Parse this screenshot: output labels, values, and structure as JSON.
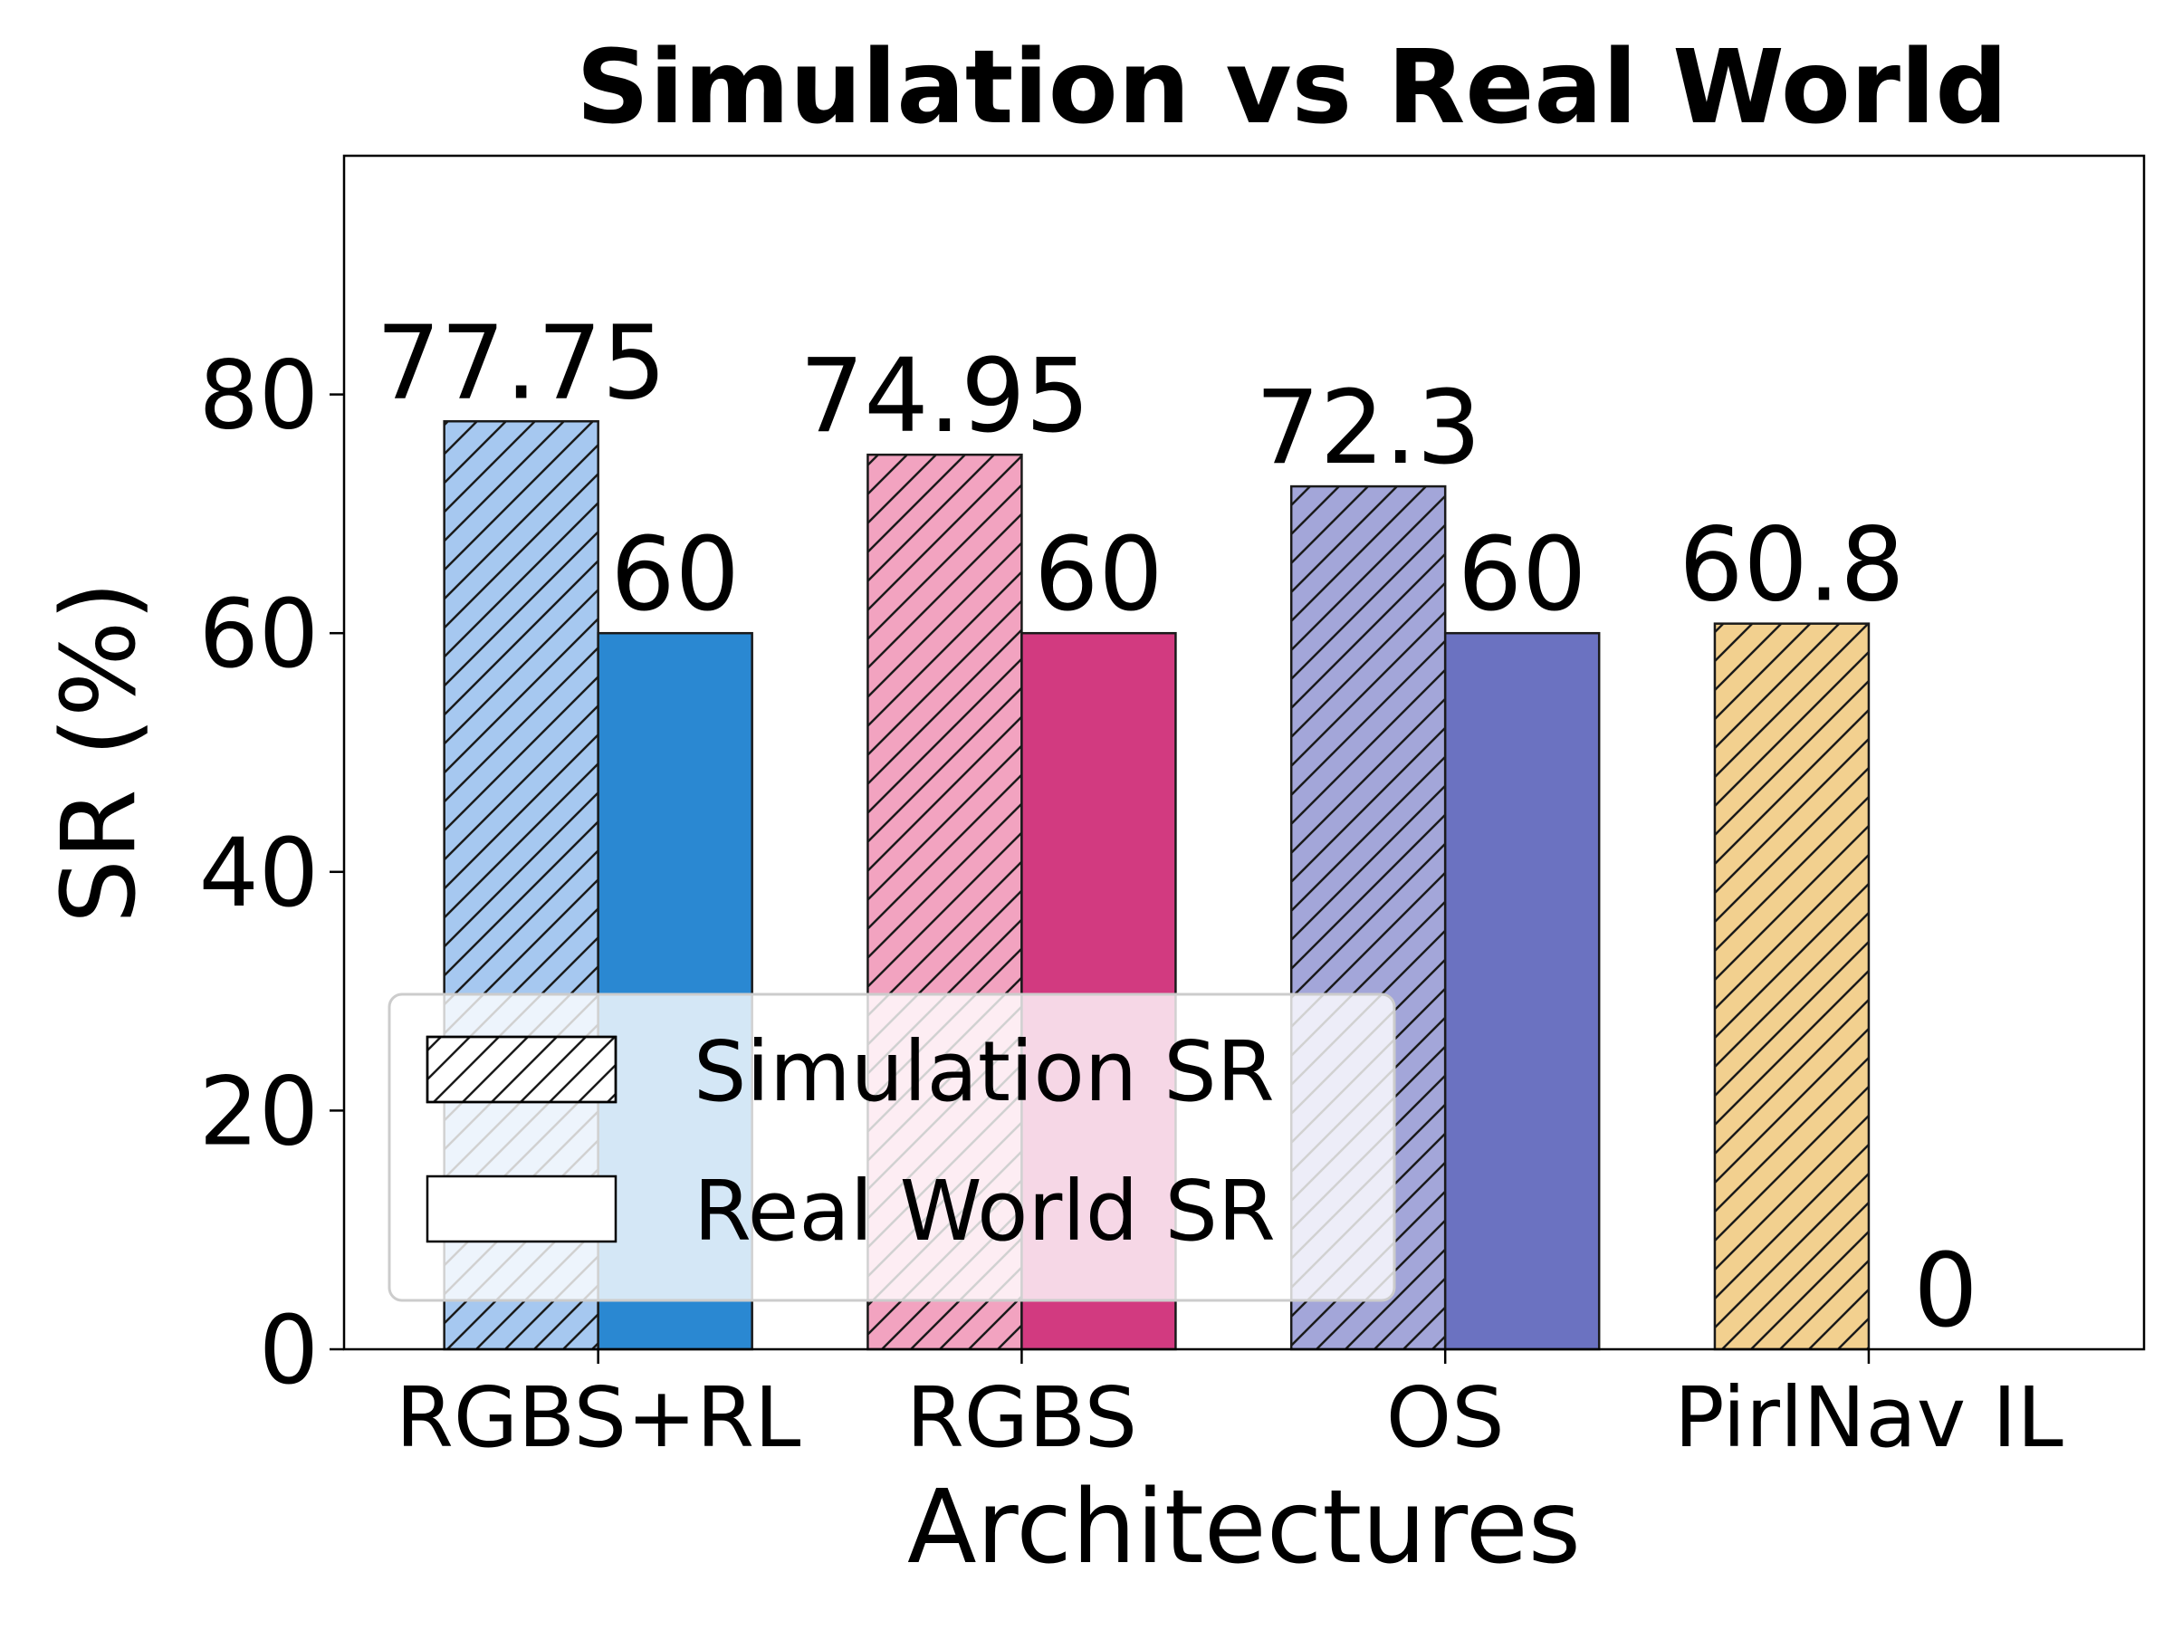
{
  "chart_data": {
    "type": "bar",
    "title": "Simulation vs Real World",
    "xlabel": "Architectures",
    "ylabel": "SR (%)",
    "categories": [
      "RGBS+RL",
      "RGBS",
      "OS",
      "PirlNav IL"
    ],
    "ylim": [
      0,
      100
    ],
    "yticks": [
      0,
      20,
      40,
      60,
      80
    ],
    "series": [
      {
        "name": "Simulation SR",
        "values": [
          77.75,
          74.95,
          72.3,
          60.8
        ],
        "value_labels": [
          "77.75",
          "74.95",
          "72.3",
          "60.8"
        ],
        "hatched": true,
        "colors": [
          "#a6c8f0",
          "#f2a3c0",
          "#a3a6d9",
          "#f2d08f"
        ]
      },
      {
        "name": "Real World SR",
        "values": [
          60,
          60,
          60,
          0
        ],
        "value_labels": [
          "60",
          "60",
          "60",
          "0"
        ],
        "hatched": false,
        "colors": [
          "#2a88d2",
          "#d23a80",
          "#6b72c1",
          "#f0b23a"
        ]
      }
    ],
    "legend": {
      "position": "lower-left",
      "background": "#ffffff"
    },
    "grid": false
  }
}
